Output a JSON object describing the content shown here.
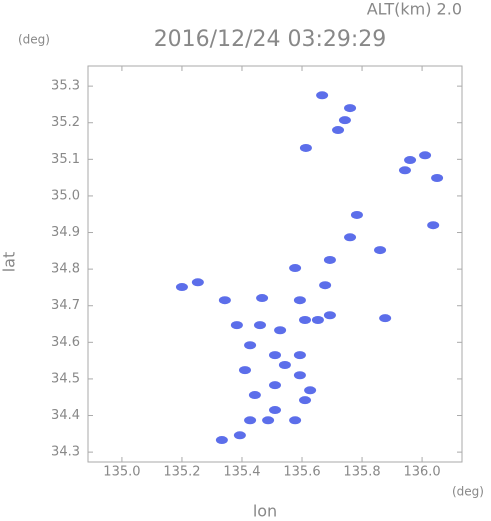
{
  "chart_data": {
    "type": "scatter",
    "title": "2016/12/24 03:29:29",
    "annotation": "ALT(km) 2.0",
    "y_unit": "(deg)",
    "x_unit": "(deg)",
    "y_label": "lat",
    "x_label": "lon",
    "color": "#4a5ee8",
    "xlim": [
      134.887,
      136.133
    ],
    "ylim": [
      34.273,
      35.355
    ],
    "xticks": [
      {
        "value": 135,
        "label": "135.0"
      },
      135.2,
      135.4,
      135.6,
      135.8,
      {
        "value": 136,
        "label": "136.0"
      }
    ],
    "yticks": [
      34.3,
      34.4,
      34.5,
      34.6,
      34.7,
      34.8,
      34.9,
      {
        "value": 35,
        "label": "35.0"
      },
      35.1,
      35.2,
      35.3
    ],
    "x": [
      135.76,
      135.743,
      135.667,
      135.72,
      135.613,
      135.96,
      136.01,
      136.05,
      135.943,
      136.037,
      135.783,
      135.76,
      135.86,
      135.693,
      135.577,
      135.677,
      135.593,
      135.2,
      135.253,
      135.467,
      135.343,
      135.383,
      135.46,
      135.527,
      135.61,
      135.653,
      135.693,
      135.877,
      135.427,
      135.51,
      135.593,
      135.41,
      135.51,
      135.593,
      135.443,
      135.51,
      135.61,
      135.487,
      135.427,
      135.393,
      135.333,
      135.577,
      135.627,
      135.543
    ],
    "values": [
      35.24,
      35.207,
      35.275,
      35.18,
      35.131,
      35.098,
      35.111,
      35.049,
      35.07,
      34.92,
      34.948,
      34.887,
      34.852,
      34.825,
      34.803,
      34.756,
      34.715,
      34.751,
      34.764,
      34.721,
      34.715,
      34.647,
      34.647,
      34.633,
      34.661,
      34.661,
      34.674,
      34.666,
      34.592,
      34.565,
      34.565,
      34.524,
      34.483,
      34.51,
      34.456,
      34.415,
      34.442,
      34.387,
      34.387,
      34.346,
      34.333,
      34.387,
      34.469,
      34.538
    ]
  }
}
